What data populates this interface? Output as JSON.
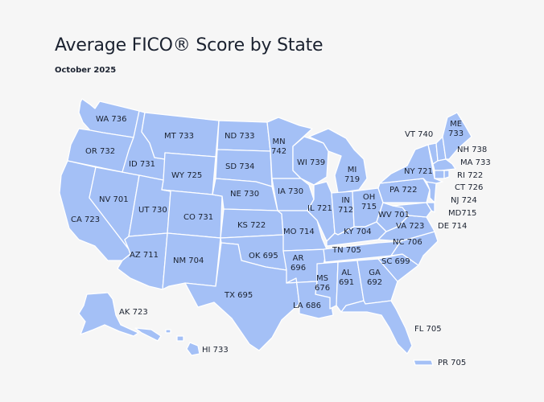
{
  "title": "Average FICO® Score by State",
  "subtitle": "October 2025",
  "colors": {
    "land": "#a4c0f6",
    "border": "#ffffff",
    "text": "#1b2230",
    "background": "#f6f6f6"
  },
  "states": {
    "WA": {
      "code": "WA",
      "score": "736"
    },
    "OR": {
      "code": "OR",
      "score": "732"
    },
    "CA": {
      "code": "CA",
      "score": "723"
    },
    "NV": {
      "code": "NV",
      "score": "701"
    },
    "ID": {
      "code": "ID",
      "score": "731"
    },
    "MT": {
      "code": "MT",
      "score": "733"
    },
    "WY": {
      "code": "WY",
      "score": "725"
    },
    "UT": {
      "code": "UT",
      "score": "730"
    },
    "AZ": {
      "code": "AZ",
      "score": "711"
    },
    "CO": {
      "code": "CO",
      "score": "731"
    },
    "NM": {
      "code": "NM",
      "score": "704"
    },
    "ND": {
      "code": "ND",
      "score": "733"
    },
    "SD": {
      "code": "SD",
      "score": "734"
    },
    "NE": {
      "code": "NE",
      "score": "730"
    },
    "KS": {
      "code": "KS",
      "score": "722"
    },
    "OK": {
      "code": "OK",
      "score": "695"
    },
    "TX": {
      "code": "TX",
      "score": "695"
    },
    "MN": {
      "code": "MN",
      "score": "742"
    },
    "IA": {
      "code": "IA",
      "score": "730"
    },
    "MO": {
      "code": "MO",
      "score": "714"
    },
    "AR": {
      "code": "AR",
      "score": "696"
    },
    "LA": {
      "code": "LA",
      "score": "686"
    },
    "WI": {
      "code": "WI",
      "score": "739"
    },
    "IL": {
      "code": "IL",
      "score": "721"
    },
    "MI": {
      "code": "MI",
      "score": "719"
    },
    "IN": {
      "code": "IN",
      "score": "712"
    },
    "OH": {
      "code": "OH",
      "score": "715"
    },
    "KY": {
      "code": "KY",
      "score": "704"
    },
    "TN": {
      "code": "TN",
      "score": "705"
    },
    "MS": {
      "code": "MS",
      "score": "676"
    },
    "AL": {
      "code": "AL",
      "score": "691"
    },
    "GA": {
      "code": "GA",
      "score": "692"
    },
    "FL": {
      "code": "FL",
      "score": "705"
    },
    "SC": {
      "code": "SC",
      "score": "699"
    },
    "NC": {
      "code": "NC",
      "score": "706"
    },
    "VA": {
      "code": "VA",
      "score": "723"
    },
    "WV": {
      "code": "WV",
      "score": "701"
    },
    "PA": {
      "code": "PA",
      "score": "722"
    },
    "NY": {
      "code": "NY",
      "score": "721"
    },
    "VT": {
      "code": "VT",
      "score": "740"
    },
    "ME": {
      "code": "ME",
      "score": "733"
    },
    "NH": {
      "code": "NH",
      "score": "738"
    },
    "MA": {
      "code": "MA",
      "score": "733"
    },
    "RI": {
      "code": "RI",
      "score": "722"
    },
    "CT": {
      "code": "CT",
      "score": "726"
    },
    "NJ": {
      "code": "NJ",
      "score": "724"
    },
    "MD": {
      "code": "MD",
      "score": "715"
    },
    "DE": {
      "code": "DE",
      "score": "714"
    },
    "AK": {
      "code": "AK",
      "score": "723"
    },
    "HI": {
      "code": "HI",
      "score": "733"
    },
    "PR": {
      "code": "PR",
      "score": "705"
    }
  }
}
